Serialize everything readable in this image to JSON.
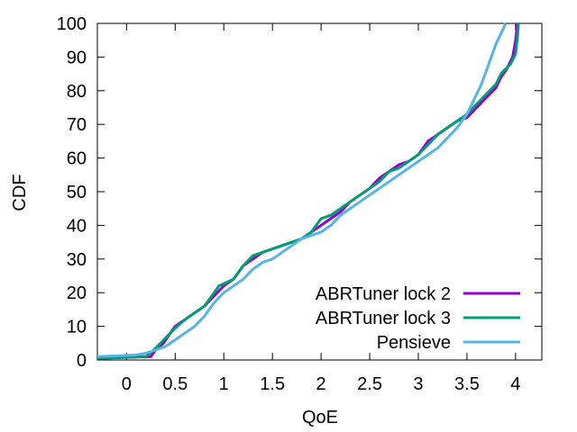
{
  "chart_data": {
    "type": "line",
    "title": "",
    "xlabel": "QoE",
    "ylabel": "CDF",
    "xlim": [
      -0.3,
      4.27
    ],
    "ylim": [
      0,
      100
    ],
    "xticks": [
      0,
      0.5,
      1,
      1.5,
      2,
      2.5,
      3,
      3.5,
      4
    ],
    "xtick_labels": [
      "0",
      "0.5",
      "1",
      "1.5",
      "2",
      "2.5",
      "3",
      "3.5",
      "4"
    ],
    "yticks": [
      0,
      10,
      20,
      30,
      40,
      50,
      60,
      70,
      80,
      90,
      100
    ],
    "ytick_labels": [
      "0",
      "10",
      "20",
      "30",
      "40",
      "50",
      "60",
      "70",
      "80",
      "90",
      "100"
    ],
    "grid": false,
    "legend_position": "bottom-right",
    "series": [
      {
        "name": "ABRTuner lock 2",
        "color": "#9400d3",
        "points": [
          [
            -0.3,
            0.5
          ],
          [
            0.25,
            1
          ],
          [
            0.3,
            3
          ],
          [
            0.38,
            5
          ],
          [
            0.45,
            8
          ],
          [
            0.5,
            10
          ],
          [
            0.6,
            12
          ],
          [
            0.7,
            14
          ],
          [
            0.8,
            16
          ],
          [
            0.9,
            19
          ],
          [
            1.0,
            22
          ],
          [
            1.1,
            24
          ],
          [
            1.2,
            28
          ],
          [
            1.3,
            30
          ],
          [
            1.4,
            32
          ],
          [
            1.5,
            33
          ],
          [
            1.6,
            34
          ],
          [
            1.7,
            35
          ],
          [
            1.8,
            36
          ],
          [
            1.9,
            38
          ],
          [
            2.0,
            40
          ],
          [
            2.1,
            42
          ],
          [
            2.2,
            44
          ],
          [
            2.3,
            47
          ],
          [
            2.4,
            49
          ],
          [
            2.5,
            51
          ],
          [
            2.6,
            54
          ],
          [
            2.7,
            56
          ],
          [
            2.8,
            58
          ],
          [
            2.9,
            59
          ],
          [
            3.0,
            61
          ],
          [
            3.1,
            65
          ],
          [
            3.2,
            67
          ],
          [
            3.3,
            69
          ],
          [
            3.4,
            71
          ],
          [
            3.5,
            72
          ],
          [
            3.6,
            75
          ],
          [
            3.7,
            78
          ],
          [
            3.8,
            81
          ],
          [
            3.85,
            84
          ],
          [
            3.9,
            86
          ],
          [
            3.97,
            90
          ],
          [
            4.0,
            95
          ],
          [
            4.02,
            100
          ]
        ]
      },
      {
        "name": "ABRTuner lock 3",
        "color": "#009e73",
        "points": [
          [
            -0.3,
            0.5
          ],
          [
            0.2,
            1
          ],
          [
            0.28,
            3
          ],
          [
            0.35,
            5
          ],
          [
            0.45,
            8
          ],
          [
            0.52,
            10
          ],
          [
            0.6,
            12
          ],
          [
            0.7,
            14
          ],
          [
            0.8,
            16
          ],
          [
            0.9,
            20
          ],
          [
            0.95,
            22
          ],
          [
            1.1,
            24
          ],
          [
            1.2,
            28
          ],
          [
            1.3,
            31
          ],
          [
            1.4,
            32
          ],
          [
            1.5,
            33
          ],
          [
            1.6,
            34
          ],
          [
            1.7,
            35
          ],
          [
            1.8,
            36
          ],
          [
            1.9,
            38
          ],
          [
            1.95,
            40
          ],
          [
            2.0,
            42
          ],
          [
            2.1,
            43
          ],
          [
            2.2,
            45
          ],
          [
            2.3,
            47
          ],
          [
            2.4,
            49
          ],
          [
            2.5,
            51
          ],
          [
            2.6,
            53
          ],
          [
            2.7,
            56
          ],
          [
            2.8,
            57
          ],
          [
            2.9,
            59
          ],
          [
            3.0,
            61
          ],
          [
            3.1,
            64
          ],
          [
            3.2,
            67
          ],
          [
            3.3,
            69
          ],
          [
            3.4,
            71
          ],
          [
            3.5,
            73
          ],
          [
            3.6,
            76
          ],
          [
            3.7,
            79
          ],
          [
            3.8,
            82
          ],
          [
            3.85,
            85
          ],
          [
            3.95,
            88
          ],
          [
            4.0,
            91
          ],
          [
            4.02,
            96
          ],
          [
            4.03,
            100
          ]
        ]
      },
      {
        "name": "Pensieve",
        "color": "#56b4e9",
        "points": [
          [
            -0.3,
            1
          ],
          [
            0.1,
            1.5
          ],
          [
            0.2,
            2
          ],
          [
            0.3,
            3
          ],
          [
            0.4,
            4
          ],
          [
            0.5,
            6
          ],
          [
            0.6,
            8
          ],
          [
            0.7,
            10
          ],
          [
            0.8,
            13
          ],
          [
            0.9,
            17
          ],
          [
            1.0,
            20
          ],
          [
            1.1,
            22
          ],
          [
            1.2,
            24
          ],
          [
            1.3,
            27
          ],
          [
            1.4,
            29
          ],
          [
            1.5,
            30
          ],
          [
            1.6,
            32
          ],
          [
            1.7,
            34
          ],
          [
            1.8,
            36
          ],
          [
            1.9,
            37
          ],
          [
            2.0,
            38
          ],
          [
            2.1,
            40
          ],
          [
            2.2,
            43
          ],
          [
            2.3,
            45
          ],
          [
            2.4,
            47
          ],
          [
            2.5,
            49
          ],
          [
            2.6,
            51
          ],
          [
            2.7,
            53
          ],
          [
            2.8,
            55
          ],
          [
            2.9,
            57
          ],
          [
            3.0,
            59
          ],
          [
            3.1,
            61
          ],
          [
            3.2,
            63
          ],
          [
            3.3,
            66
          ],
          [
            3.4,
            69
          ],
          [
            3.5,
            73
          ],
          [
            3.55,
            76
          ],
          [
            3.6,
            79
          ],
          [
            3.65,
            82
          ],
          [
            3.7,
            86
          ],
          [
            3.75,
            90
          ],
          [
            3.8,
            94
          ],
          [
            3.85,
            97
          ],
          [
            3.9,
            100
          ]
        ]
      }
    ]
  }
}
